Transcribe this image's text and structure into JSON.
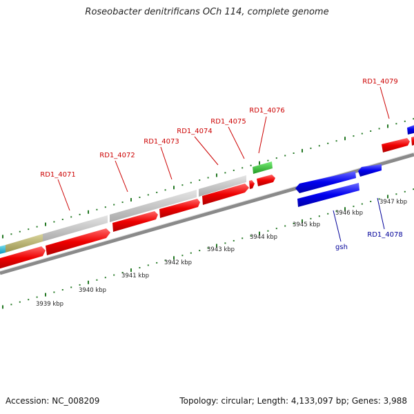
{
  "title": "Roseobacter denitrificans OCh 114, complete genome",
  "accession": "Accession: NC_008209",
  "summary": "Topology: circular; Length: 4,133,097 bp; Genes: 3,988",
  "kbp_labels": [
    "3939 kbp",
    "3940 kbp",
    "3941 kbp",
    "3942 kbp",
    "3943 kbp",
    "3944 kbp",
    "3945 kbp",
    "3946 kbp",
    "3947 kbp"
  ],
  "gene_labels": {
    "rd1_4071": "RD1_4071",
    "rd1_4072": "RD1_4072",
    "rd1_4073": "RD1_4073",
    "rd1_4074": "RD1_4074",
    "rd1_4075": "RD1_4075",
    "rd1_4076": "RD1_4076",
    "rd1_4079": "RD1_4079",
    "gsh": "gsh",
    "rd1_4078": "RD1_4078"
  },
  "colors": {
    "forward_gene": "#ee0000",
    "reverse_gene": "#0000ee",
    "feature_grey": "#c4c4c4",
    "feature_olive": "#b5b070",
    "feature_cyan": "#22bbdd",
    "feature_green": "#33bb33",
    "backbone": "#888888",
    "tick_green": "#227722",
    "label_red": "#cc0000",
    "label_blue": "#000099"
  }
}
